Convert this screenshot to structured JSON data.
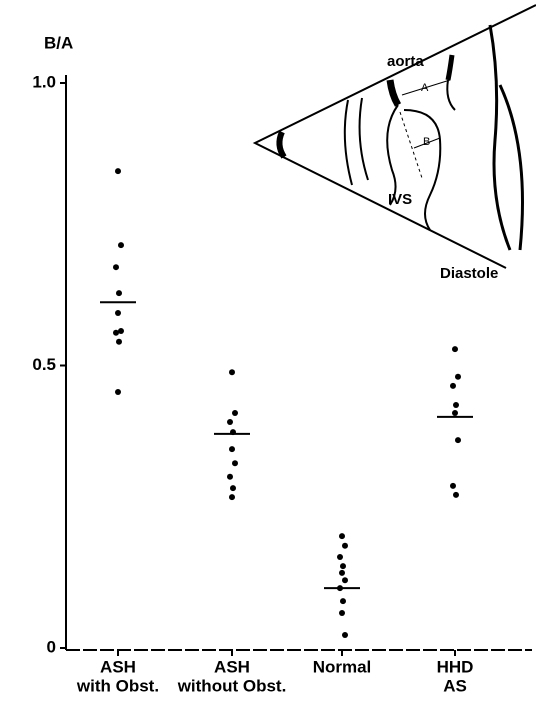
{
  "chart_data": {
    "type": "dot",
    "y_label": "B/A",
    "categories": [
      [
        "ASH",
        "with Obst."
      ],
      [
        "ASH",
        "without Obst."
      ],
      [
        "Normal"
      ],
      [
        "HHD",
        "AS"
      ]
    ],
    "values": [
      [
        0.844,
        0.713,
        0.674,
        0.628,
        0.593,
        0.561,
        0.558,
        0.542,
        0.453
      ],
      [
        0.488,
        0.416,
        0.4,
        0.382,
        0.352,
        0.327,
        0.303,
        0.283,
        0.267
      ],
      [
        0.198,
        0.181,
        0.161,
        0.145,
        0.133,
        0.12,
        0.106,
        0.083,
        0.062,
        0.023
      ],
      [
        0.529,
        0.48,
        0.464,
        0.43,
        0.416,
        0.368,
        0.287,
        0.271
      ]
    ],
    "means": [
      0.612,
      0.379,
      0.106,
      0.409
    ],
    "color": "#000000",
    "ylim": [
      0,
      1.03
    ],
    "yticks": [
      0,
      0.5,
      {
        "value": 1,
        "label": "1.0"
      }
    ]
  },
  "inset": {
    "labels": [
      "aorta",
      "A",
      "B",
      "IVS",
      "Diastole"
    ]
  }
}
